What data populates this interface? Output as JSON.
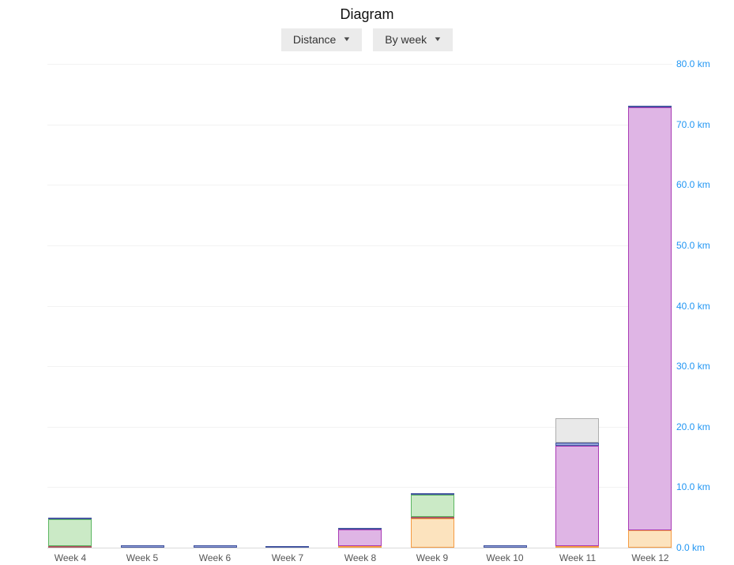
{
  "header": {
    "title": "Diagram"
  },
  "controls": {
    "metric_dropdown": {
      "label": "Distance"
    },
    "period_dropdown": {
      "label": "By week"
    },
    "icons": {
      "dropdown_caret": "▼"
    }
  },
  "colors": {
    "axis_label": "#2196F3",
    "gridline": "#f2f2f2",
    "axis_line": "#d9d9d9",
    "x_label": "#555555"
  },
  "chart_data": {
    "type": "bar",
    "stacked": true,
    "title": "Diagram",
    "unit": "km",
    "grid": true,
    "legend_position": "none",
    "y_axis_position": "right",
    "ylim": [
      0,
      80
    ],
    "ytick_step": 10,
    "yticks": [
      "0.0 km",
      "10.0 km",
      "20.0 km",
      "30.0 km",
      "40.0 km",
      "50.0 km",
      "60.0 km",
      "70.0 km",
      "80.0 km"
    ],
    "categories": [
      "Week 4",
      "Week 5",
      "Week 6",
      "Week 7",
      "Week 8",
      "Week 9",
      "Week 10",
      "Week 11",
      "Week 12"
    ],
    "series": [
      {
        "name": "orange-series",
        "fill": "#FCE3BE",
        "border": "#F59B42",
        "values": [
          0,
          0,
          0,
          0,
          0.2,
          4.8,
          0,
          0.3,
          2.9
        ]
      },
      {
        "name": "red-series",
        "fill": "#D98F96",
        "border": "#AA5660",
        "values": [
          0.3,
          0,
          0,
          0,
          0,
          0.3,
          0,
          0,
          0
        ]
      },
      {
        "name": "green-series",
        "fill": "#CBEAC6",
        "border": "#5CB661",
        "values": [
          4.4,
          0,
          0,
          0,
          0,
          3.6,
          0,
          0,
          0
        ]
      },
      {
        "name": "purple-series",
        "fill": "#DFB5E5",
        "border": "#A93BB5",
        "values": [
          0,
          0,
          0,
          0,
          2.8,
          0,
          0,
          16.6,
          69.9
        ]
      },
      {
        "name": "blue-series",
        "fill": "#93A2D8",
        "border": "#4556A0",
        "values": [
          0.3,
          0.4,
          0.4,
          0.3,
          0.3,
          0.3,
          0.4,
          0.5,
          0.3
        ]
      },
      {
        "name": "gray-series",
        "fill": "#E9E9E9",
        "border": "#ADADAD",
        "values": [
          0,
          0,
          0,
          0,
          0,
          0,
          0,
          4.0,
          0
        ]
      }
    ],
    "totals": [
      5.0,
      0.4,
      0.4,
      0.3,
      3.3,
      9.0,
      0.4,
      21.4,
      73.1
    ]
  }
}
